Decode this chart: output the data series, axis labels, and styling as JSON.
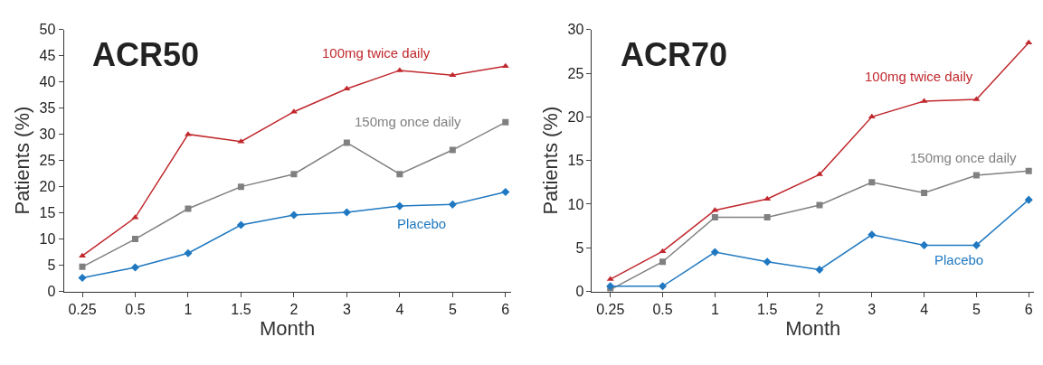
{
  "chart_data": [
    {
      "type": "line",
      "title": "ACR50",
      "xlabel": "Month",
      "ylabel": "Patients (%)",
      "categories": [
        "0.25",
        "0.5",
        "1",
        "1.5",
        "2",
        "3",
        "4",
        "5",
        "6"
      ],
      "ylim": [
        0,
        50
      ],
      "yticks": [
        0,
        5,
        10,
        15,
        20,
        25,
        30,
        35,
        40,
        45,
        50
      ],
      "series": [
        {
          "name": "100mg twice daily",
          "color": "#c0282d",
          "marker": "triangle",
          "values": [
            6.8,
            14.1,
            30,
            28.6,
            34.3,
            38.7,
            42.2,
            41.3,
            43
          ]
        },
        {
          "name": "150mg once daily",
          "color": "#808080",
          "marker": "square",
          "values": [
            4.7,
            10,
            15.8,
            20,
            22.4,
            28.4,
            22.4,
            27,
            32.3
          ]
        },
        {
          "name": "Placebo",
          "color": "#1f78c1",
          "marker": "diamond",
          "values": [
            2.6,
            4.6,
            7.3,
            12.7,
            14.6,
            15.1,
            16.3,
            16.6,
            19
          ]
        }
      ]
    },
    {
      "type": "line",
      "title": "ACR70",
      "xlabel": "Month",
      "ylabel": "Patients (%)",
      "categories": [
        "0.25",
        "0.5",
        "1",
        "1.5",
        "2",
        "3",
        "4",
        "5",
        "6"
      ],
      "ylim": [
        0,
        30
      ],
      "yticks": [
        0,
        5,
        10,
        15,
        20,
        25,
        30
      ],
      "series": [
        {
          "name": "100mg twice daily",
          "color": "#c0282d",
          "marker": "triangle",
          "values": [
            1.4,
            4.6,
            9.3,
            10.6,
            13.4,
            20,
            21.8,
            22,
            28.5
          ]
        },
        {
          "name": "150mg once daily",
          "color": "#808080",
          "marker": "square",
          "values": [
            0.2,
            3.4,
            8.5,
            8.5,
            9.9,
            12.5,
            11.3,
            13.3,
            13.8
          ]
        },
        {
          "name": "Placebo",
          "color": "#1f78c1",
          "marker": "diamond",
          "values": [
            0.6,
            0.6,
            4.5,
            3.4,
            2.5,
            6.5,
            5.3,
            5.3,
            10.5
          ]
        }
      ]
    }
  ]
}
